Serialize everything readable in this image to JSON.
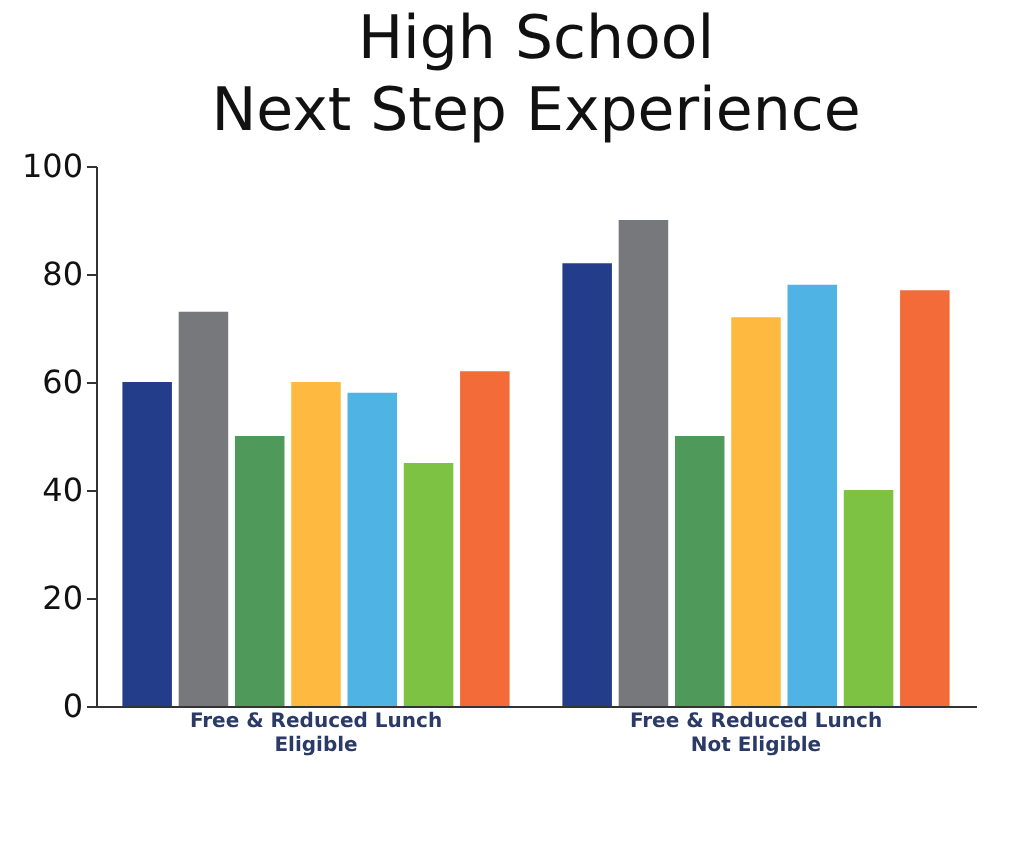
{
  "chart_data": {
    "type": "bar",
    "title": "High School\nNext Step Experience",
    "categories": [
      "Free & Reduced Lunch\nEligible",
      "Free & Reduced Lunch\nNot Eligible"
    ],
    "series": [
      {
        "color": "#233d8a",
        "values": [
          60,
          82
        ]
      },
      {
        "color": "#77787b",
        "values": [
          73,
          90
        ]
      },
      {
        "color": "#4f9a5a",
        "values": [
          50,
          50
        ]
      },
      {
        "color": "#fdb940",
        "values": [
          60,
          72
        ]
      },
      {
        "color": "#4fb3e3",
        "values": [
          58,
          78
        ]
      },
      {
        "color": "#7dc242",
        "values": [
          45,
          40
        ]
      },
      {
        "color": "#f26b38",
        "values": [
          62,
          77
        ]
      }
    ],
    "ylim": [
      0,
      100
    ],
    "yticks": [
      0,
      20,
      40,
      60,
      80,
      100
    ],
    "grid": false,
    "legend": false
  }
}
